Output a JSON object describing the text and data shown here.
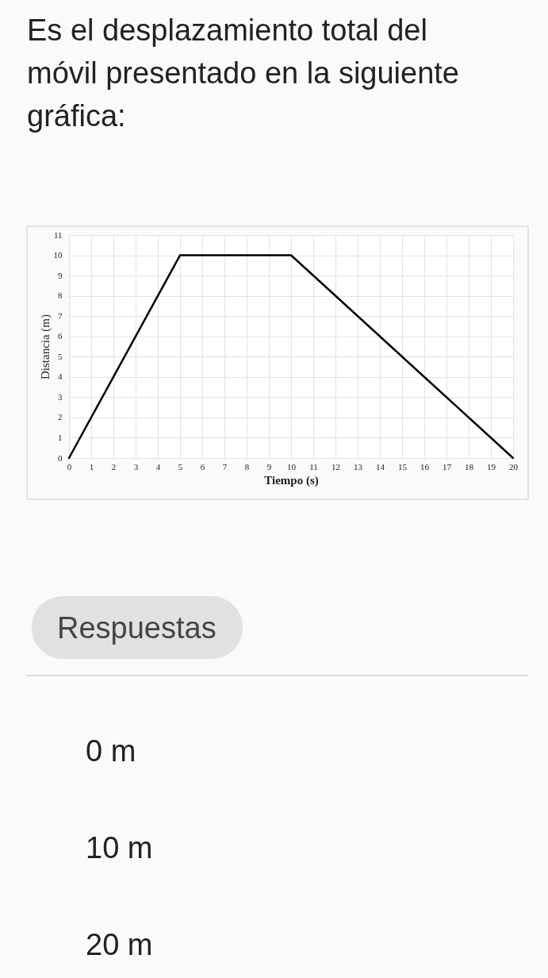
{
  "chart_data": {
    "type": "line",
    "title": "Es el desplazamiento total del móvil presentado en la siguiente gráfica:",
    "xlabel": "Tiempo (s)",
    "ylabel": "Distancia (m)",
    "x": [
      0,
      5,
      10,
      20
    ],
    "series": [
      {
        "color": "#000000",
        "values": [
          0,
          10,
          10,
          0
        ]
      }
    ],
    "xlim": [
      0,
      20
    ],
    "xticks": [
      0,
      1,
      2,
      3,
      4,
      5,
      6,
      7,
      8,
      9,
      10,
      11,
      12,
      13,
      14,
      15,
      16,
      17,
      18,
      19,
      20
    ],
    "ylim": [
      0,
      11
    ],
    "yticks": [
      0,
      1,
      2,
      3,
      4,
      5,
      6,
      7,
      8,
      9,
      10,
      11
    ],
    "grid": true,
    "annotations": [
      "Respuestas",
      "0 m",
      "10 m",
      "20 m"
    ]
  }
}
